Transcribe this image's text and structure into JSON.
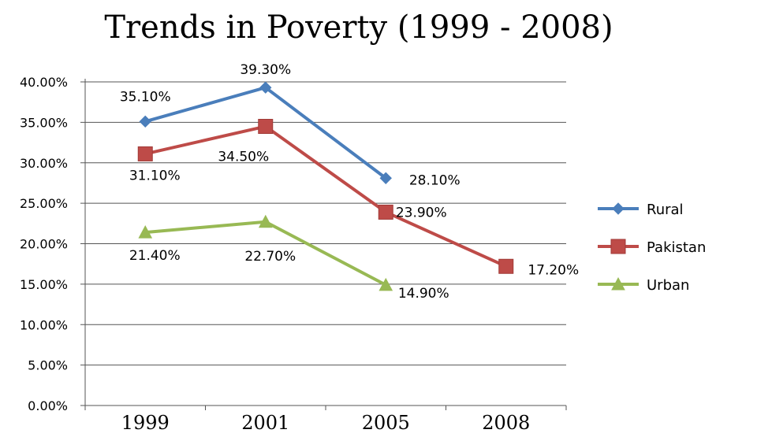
{
  "chart_data": {
    "type": "line",
    "title": "Trends in Poverty (1999 - 2008)",
    "xlabel": "",
    "ylabel": "",
    "categories": [
      "1999",
      "2001",
      "2005",
      "2008"
    ],
    "ylim": [
      0,
      40
    ],
    "yticks": [
      "0.00%",
      "5.00%",
      "10.00%",
      "15.00%",
      "20.00%",
      "25.00%",
      "30.00%",
      "35.00%",
      "40.00%"
    ],
    "grid": true,
    "legend_position": "right",
    "series": [
      {
        "name": "Rural",
        "color": "#4a7ebb",
        "marker": "diamond",
        "values": [
          35.1,
          39.3,
          28.1,
          null
        ],
        "labels": [
          "35.10%",
          "39.30%",
          "28.10%",
          ""
        ]
      },
      {
        "name": "Pakistan",
        "color": "#be4b48",
        "marker": "square",
        "values": [
          31.1,
          34.5,
          23.9,
          17.2
        ],
        "labels": [
          "31.10%",
          "34.50%",
          "23.90%",
          "17.20%"
        ]
      },
      {
        "name": "Urban",
        "color": "#98b954",
        "marker": "triangle",
        "values": [
          21.4,
          22.7,
          14.9,
          null
        ],
        "labels": [
          "21.40%",
          "22.70%",
          "14.90%",
          ""
        ]
      }
    ]
  }
}
